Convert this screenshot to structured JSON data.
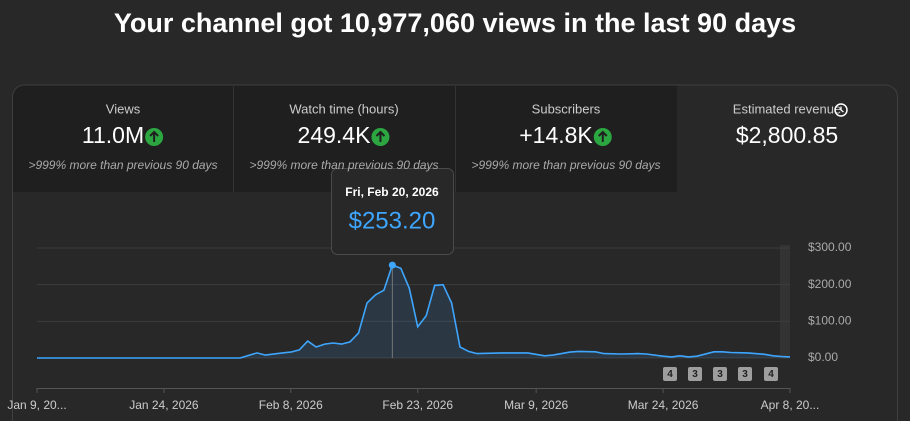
{
  "header": {
    "title": "Your channel got 10,977,060 views in the last 90 days"
  },
  "metrics": [
    {
      "label": "Views",
      "value": "11.0M",
      "note": ">999% more than previous 90 days"
    },
    {
      "label": "Watch time (hours)",
      "value": "249.4K",
      "note": ">999% more than previous 90 days"
    },
    {
      "label": "Subscribers",
      "value": "+14.8K",
      "note": ">999% more than previous 90 days"
    },
    {
      "label": "Estimated revenue",
      "value": "$2,800.85"
    }
  ],
  "tooltip": {
    "date": "Fri, Feb 20, 2026",
    "value": "$253.20"
  },
  "badges": [
    "4",
    "3",
    "3",
    "3",
    "4"
  ],
  "chart_data": {
    "type": "line",
    "color": "#3ea6ff",
    "grid": true,
    "x": [
      "2026-01-09",
      "2026-02-02",
      "2026-02-04",
      "2026-02-05",
      "2026-02-07",
      "2026-02-08",
      "2026-02-09",
      "2026-02-10",
      "2026-02-11",
      "2026-02-12",
      "2026-02-13",
      "2026-02-14",
      "2026-02-15",
      "2026-02-16",
      "2026-02-17",
      "2026-02-18",
      "2026-02-19",
      "2026-02-20",
      "2026-02-21",
      "2026-02-22",
      "2026-02-23",
      "2026-02-24",
      "2026-02-25",
      "2026-02-26",
      "2026-02-27",
      "2026-02-28",
      "2026-03-01",
      "2026-03-02",
      "2026-03-05",
      "2026-03-08",
      "2026-03-10",
      "2026-03-11",
      "2026-03-13",
      "2026-03-14",
      "2026-03-16",
      "2026-03-17",
      "2026-03-19",
      "2026-03-21",
      "2026-03-22",
      "2026-03-24",
      "2026-03-25",
      "2026-03-26",
      "2026-03-27",
      "2026-03-28",
      "2026-03-30",
      "2026-03-31",
      "2026-04-01",
      "2026-04-03",
      "2026-04-05",
      "2026-04-06",
      "2026-04-07",
      "2026-04-08"
    ],
    "values": [
      0,
      0,
      14,
      8,
      14,
      16,
      22,
      46,
      30,
      38,
      41,
      38,
      44,
      68,
      150,
      172,
      185,
      253.2,
      245,
      190,
      85,
      115,
      198,
      200,
      150,
      30,
      18,
      12,
      14,
      14,
      6,
      8,
      16,
      18,
      17,
      12,
      11,
      12,
      11,
      5,
      3,
      6,
      3,
      5,
      17,
      17,
      15,
      14,
      10,
      6,
      4,
      3
    ],
    "xlim": [
      "2026-01-09",
      "2026-04-08"
    ],
    "xticks": [
      {
        "value": "2026-01-09",
        "label": "Jan 9, 20..."
      },
      {
        "value": "2026-01-24",
        "label": "Jan 24, 2026"
      },
      {
        "value": "2026-02-08",
        "label": "Feb 8, 2026"
      },
      {
        "value": "2026-02-23",
        "label": "Feb 23, 2026"
      },
      {
        "value": "2026-03-09",
        "label": "Mar 9, 2026"
      },
      {
        "value": "2026-03-24",
        "label": "Mar 24, 2026"
      },
      {
        "value": "2026-04-08",
        "label": "Apr 8, 20..."
      }
    ],
    "ylim": [
      0,
      300
    ],
    "yticks": [
      {
        "value": 0,
        "label": "$0.00"
      },
      {
        "value": 100,
        "label": "$100.00"
      },
      {
        "value": 200,
        "label": "$200.00"
      },
      {
        "value": 300,
        "label": "$300.00"
      }
    ]
  }
}
